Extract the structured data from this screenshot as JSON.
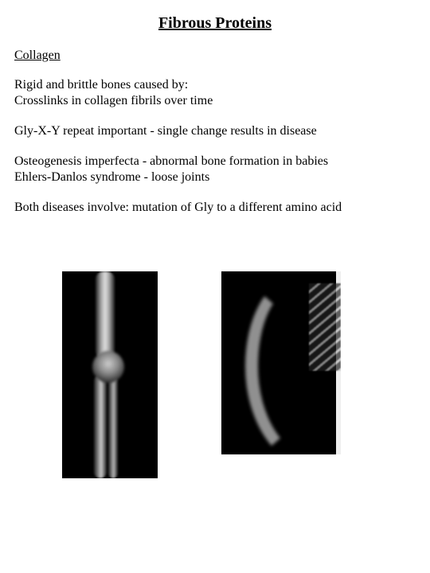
{
  "title": "Fibrous Proteins",
  "subtitle": "Collagen",
  "paragraphs": {
    "p1_line1": "Rigid and brittle bones caused by:",
    "p1_line2": "Crosslinks in collagen fibrils over time",
    "p2": "Gly-X-Y repeat important - single change results in disease",
    "p3_line1": "Osteogenesis imperfecta - abnormal bone formation in babies",
    "p3_line2": "Ehlers-Danlos syndrome - loose joints",
    "p4": "Both diseases involve: mutation of Gly to a different amino acid"
  },
  "images": {
    "left_alt": "arm-xray",
    "right_alt": "spine-xray"
  },
  "colors": {
    "background": "#ffffff",
    "text": "#000000",
    "xray_bg": "#000000"
  },
  "typography": {
    "family": "Times New Roman",
    "title_size_pt": 15,
    "body_size_pt": 12,
    "title_weight": "bold"
  }
}
